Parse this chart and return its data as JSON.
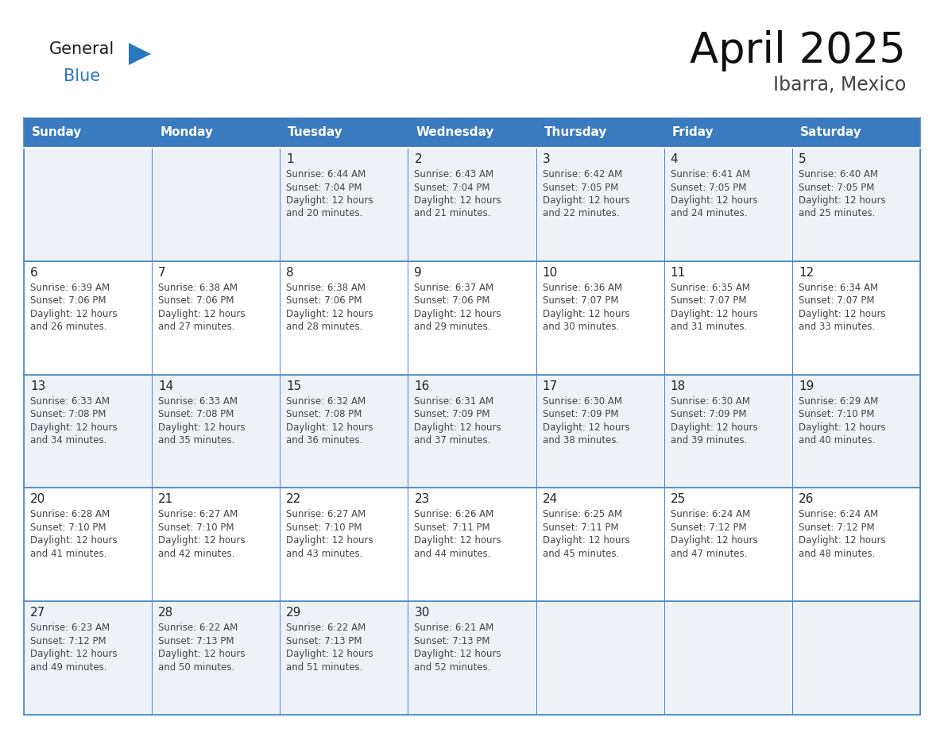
{
  "title": "April 2025",
  "subtitle": "Ibarra, Mexico",
  "header_bg": "#3a7abf",
  "header_text_color": "#ffffff",
  "day_names": [
    "Sunday",
    "Monday",
    "Tuesday",
    "Wednesday",
    "Thursday",
    "Friday",
    "Saturday"
  ],
  "bg_color": "#ffffff",
  "cell_bg_even": "#eef2f7",
  "cell_bg_odd": "#ffffff",
  "cell_border": "#4a86c8",
  "text_color": "#333333",
  "day_number_color": "#222222",
  "logo_general_color": "#1a1a1a",
  "logo_blue_color": "#2878c0",
  "calendar": [
    [
      null,
      null,
      {
        "day": 1,
        "sunrise": "6:44 AM",
        "sunset": "7:04 PM",
        "daylight_line1": "12 hours",
        "daylight_line2": "and 20 minutes."
      },
      {
        "day": 2,
        "sunrise": "6:43 AM",
        "sunset": "7:04 PM",
        "daylight_line1": "12 hours",
        "daylight_line2": "and 21 minutes."
      },
      {
        "day": 3,
        "sunrise": "6:42 AM",
        "sunset": "7:05 PM",
        "daylight_line1": "12 hours",
        "daylight_line2": "and 22 minutes."
      },
      {
        "day": 4,
        "sunrise": "6:41 AM",
        "sunset": "7:05 PM",
        "daylight_line1": "12 hours",
        "daylight_line2": "and 24 minutes."
      },
      {
        "day": 5,
        "sunrise": "6:40 AM",
        "sunset": "7:05 PM",
        "daylight_line1": "12 hours",
        "daylight_line2": "and 25 minutes."
      }
    ],
    [
      {
        "day": 6,
        "sunrise": "6:39 AM",
        "sunset": "7:06 PM",
        "daylight_line1": "12 hours",
        "daylight_line2": "and 26 minutes."
      },
      {
        "day": 7,
        "sunrise": "6:38 AM",
        "sunset": "7:06 PM",
        "daylight_line1": "12 hours",
        "daylight_line2": "and 27 minutes."
      },
      {
        "day": 8,
        "sunrise": "6:38 AM",
        "sunset": "7:06 PM",
        "daylight_line1": "12 hours",
        "daylight_line2": "and 28 minutes."
      },
      {
        "day": 9,
        "sunrise": "6:37 AM",
        "sunset": "7:06 PM",
        "daylight_line1": "12 hours",
        "daylight_line2": "and 29 minutes."
      },
      {
        "day": 10,
        "sunrise": "6:36 AM",
        "sunset": "7:07 PM",
        "daylight_line1": "12 hours",
        "daylight_line2": "and 30 minutes."
      },
      {
        "day": 11,
        "sunrise": "6:35 AM",
        "sunset": "7:07 PM",
        "daylight_line1": "12 hours",
        "daylight_line2": "and 31 minutes."
      },
      {
        "day": 12,
        "sunrise": "6:34 AM",
        "sunset": "7:07 PM",
        "daylight_line1": "12 hours",
        "daylight_line2": "and 33 minutes."
      }
    ],
    [
      {
        "day": 13,
        "sunrise": "6:33 AM",
        "sunset": "7:08 PM",
        "daylight_line1": "12 hours",
        "daylight_line2": "and 34 minutes."
      },
      {
        "day": 14,
        "sunrise": "6:33 AM",
        "sunset": "7:08 PM",
        "daylight_line1": "12 hours",
        "daylight_line2": "and 35 minutes."
      },
      {
        "day": 15,
        "sunrise": "6:32 AM",
        "sunset": "7:08 PM",
        "daylight_line1": "12 hours",
        "daylight_line2": "and 36 minutes."
      },
      {
        "day": 16,
        "sunrise": "6:31 AM",
        "sunset": "7:09 PM",
        "daylight_line1": "12 hours",
        "daylight_line2": "and 37 minutes."
      },
      {
        "day": 17,
        "sunrise": "6:30 AM",
        "sunset": "7:09 PM",
        "daylight_line1": "12 hours",
        "daylight_line2": "and 38 minutes."
      },
      {
        "day": 18,
        "sunrise": "6:30 AM",
        "sunset": "7:09 PM",
        "daylight_line1": "12 hours",
        "daylight_line2": "and 39 minutes."
      },
      {
        "day": 19,
        "sunrise": "6:29 AM",
        "sunset": "7:10 PM",
        "daylight_line1": "12 hours",
        "daylight_line2": "and 40 minutes."
      }
    ],
    [
      {
        "day": 20,
        "sunrise": "6:28 AM",
        "sunset": "7:10 PM",
        "daylight_line1": "12 hours",
        "daylight_line2": "and 41 minutes."
      },
      {
        "day": 21,
        "sunrise": "6:27 AM",
        "sunset": "7:10 PM",
        "daylight_line1": "12 hours",
        "daylight_line2": "and 42 minutes."
      },
      {
        "day": 22,
        "sunrise": "6:27 AM",
        "sunset": "7:10 PM",
        "daylight_line1": "12 hours",
        "daylight_line2": "and 43 minutes."
      },
      {
        "day": 23,
        "sunrise": "6:26 AM",
        "sunset": "7:11 PM",
        "daylight_line1": "12 hours",
        "daylight_line2": "and 44 minutes."
      },
      {
        "day": 24,
        "sunrise": "6:25 AM",
        "sunset": "7:11 PM",
        "daylight_line1": "12 hours",
        "daylight_line2": "and 45 minutes."
      },
      {
        "day": 25,
        "sunrise": "6:24 AM",
        "sunset": "7:12 PM",
        "daylight_line1": "12 hours",
        "daylight_line2": "and 47 minutes."
      },
      {
        "day": 26,
        "sunrise": "6:24 AM",
        "sunset": "7:12 PM",
        "daylight_line1": "12 hours",
        "daylight_line2": "and 48 minutes."
      }
    ],
    [
      {
        "day": 27,
        "sunrise": "6:23 AM",
        "sunset": "7:12 PM",
        "daylight_line1": "12 hours",
        "daylight_line2": "and 49 minutes."
      },
      {
        "day": 28,
        "sunrise": "6:22 AM",
        "sunset": "7:13 PM",
        "daylight_line1": "12 hours",
        "daylight_line2": "and 50 minutes."
      },
      {
        "day": 29,
        "sunrise": "6:22 AM",
        "sunset": "7:13 PM",
        "daylight_line1": "12 hours",
        "daylight_line2": "and 51 minutes."
      },
      {
        "day": 30,
        "sunrise": "6:21 AM",
        "sunset": "7:13 PM",
        "daylight_line1": "12 hours",
        "daylight_line2": "and 52 minutes."
      },
      null,
      null,
      null
    ]
  ]
}
